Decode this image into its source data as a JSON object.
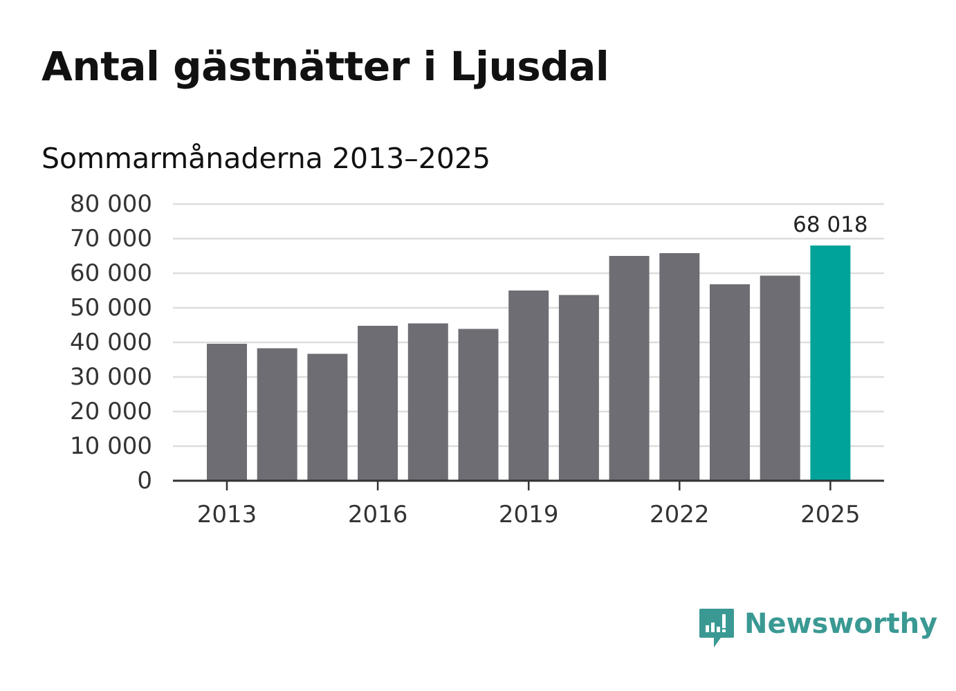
{
  "header": {
    "title": "Antal gästnätter i Ljusdal",
    "subtitle": "Sommarmånaderna 2013–2025"
  },
  "brand": {
    "name": "Newsworthy",
    "color": "#3a9993",
    "icon": "newsworthy-chart-bubble-icon"
  },
  "colors": {
    "bar": "#6e6d73",
    "highlight": "#00a39a",
    "grid": "#dddddd",
    "axis": "#333333"
  },
  "chart_data": {
    "type": "bar",
    "categories": [
      "2013",
      "2014",
      "2015",
      "2016",
      "2017",
      "2018",
      "2019",
      "2020",
      "2021",
      "2022",
      "2023",
      "2024",
      "2025"
    ],
    "values": [
      39600,
      38300,
      36700,
      44800,
      45500,
      43900,
      55000,
      53700,
      65000,
      65800,
      56800,
      59300,
      68018
    ],
    "highlight_index": 12,
    "data_label": "68 018",
    "ylim": [
      0,
      80000
    ],
    "yticks": [
      0,
      10000,
      20000,
      30000,
      40000,
      50000,
      60000,
      70000,
      80000
    ],
    "ytick_labels": [
      "0",
      "10 000",
      "20 000",
      "30 000",
      "40 000",
      "50 000",
      "60 000",
      "70 000",
      "80 000"
    ],
    "xtick_labels": [
      "2013",
      "2016",
      "2019",
      "2022",
      "2025"
    ],
    "grid": true,
    "legend": "none"
  }
}
